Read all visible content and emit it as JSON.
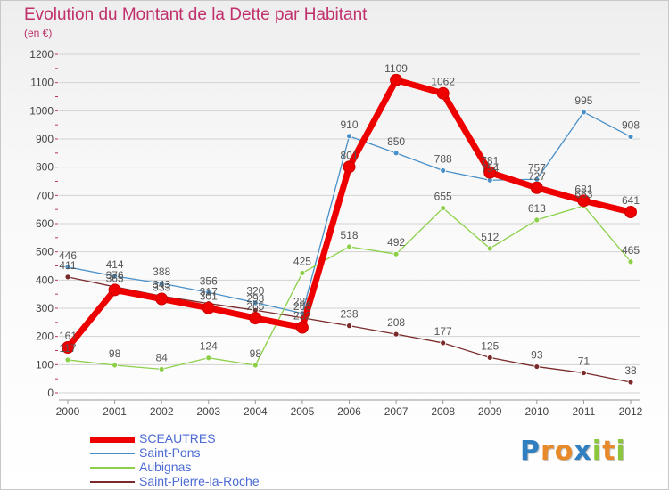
{
  "title": "Evolution du Montant de la Dette par Habitant",
  "subtitle": "(en €)",
  "logo": {
    "letters": [
      "P",
      "r",
      "o",
      "x",
      "i",
      "t",
      "i"
    ],
    "colors": [
      "#2f7fc1",
      "#e98a2a",
      "#e98a2a",
      "#2f7fc1",
      "#8cc63f",
      "#e98a2a",
      "#8cc63f"
    ]
  },
  "chart_data": {
    "type": "line",
    "title": "Evolution du Montant de la Dette par Habitant",
    "ylabel": "(en €)",
    "xlabel": "",
    "x": [
      "2000",
      "2001",
      "2002",
      "2003",
      "2004",
      "2005",
      "2006",
      "2007",
      "2008",
      "2009",
      "2010",
      "2011",
      "2012"
    ],
    "ylim": [
      0,
      1200
    ],
    "yticks": [
      "0",
      "100",
      "200",
      "300",
      "400",
      "500",
      "600",
      "700",
      "800",
      "900",
      "1000",
      "1100",
      "1200"
    ],
    "grid": "horizontal",
    "legend_position": "bottom-left",
    "series": [
      {
        "name": "Saint-Pons",
        "color": "#4a90c8",
        "highlight": false,
        "values": [
          446,
          414,
          388,
          356,
          320,
          282,
          910,
          850,
          788,
          754,
          757,
          995,
          908
        ],
        "labels": [
          "446",
          "414",
          "388",
          "356",
          "320",
          "282",
          "910",
          "850",
          "788",
          "754",
          "757",
          "995",
          "908"
        ]
      },
      {
        "name": "Aubignas",
        "color": "#8cd04a",
        "highlight": false,
        "values": [
          117,
          98,
          84,
          124,
          98,
          425,
          518,
          492,
          655,
          512,
          613,
          663,
          465
        ],
        "labels": [
          "117",
          "98",
          "84",
          "124",
          "98",
          "425",
          "518",
          "492",
          "655",
          "512",
          "613",
          "663",
          "465"
        ]
      },
      {
        "name": "Saint-Pierre-la-Roche",
        "color": "#7a2a2a",
        "highlight": false,
        "values": [
          411,
          376,
          343,
          317,
          293,
          266,
          238,
          208,
          177,
          125,
          93,
          71,
          38
        ],
        "labels": [
          "411",
          "376",
          "343",
          "317",
          "293",
          "266",
          "238",
          "208",
          "177",
          "125",
          "93",
          "71",
          "38"
        ]
      },
      {
        "name": "SCEAUTRES",
        "color": "#ee0000",
        "highlight": true,
        "values": [
          161,
          365,
          333,
          301,
          265,
          232,
          801,
          1109,
          1062,
          781,
          727,
          681,
          641
        ],
        "labels": [
          "161",
          "365",
          "333",
          "301",
          "265",
          "232",
          "801",
          "1109",
          "1062",
          "781",
          "727",
          "681",
          "641"
        ]
      }
    ]
  }
}
